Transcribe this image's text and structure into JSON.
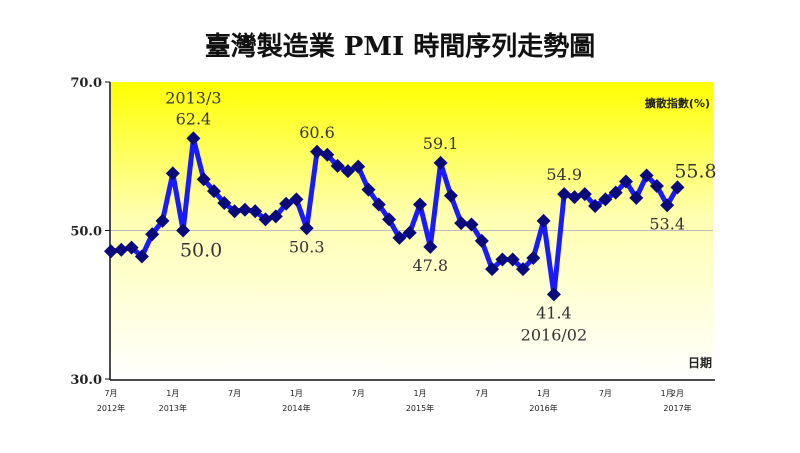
{
  "chart_data": {
    "type": "line",
    "title": "臺灣製造業 PMI 時間序列走勢圖",
    "ylabel": "擴散指數(%)",
    "xlabel": "日期",
    "ylim": [
      30,
      70
    ],
    "yticks": [
      "30.0",
      "50.0",
      "70.0"
    ],
    "reference_line": 50,
    "start": "2012/7",
    "x_ticks": [
      {
        "index": 0,
        "month": "7月",
        "year": "2012年"
      },
      {
        "index": 6,
        "month": "1月",
        "year": "2013年"
      },
      {
        "index": 12,
        "month": "7月",
        "year": ""
      },
      {
        "index": 18,
        "month": "1月",
        "year": "2014年"
      },
      {
        "index": 24,
        "month": "7月",
        "year": ""
      },
      {
        "index": 30,
        "month": "1月",
        "year": "2015年"
      },
      {
        "index": 36,
        "month": "7月",
        "year": ""
      },
      {
        "index": 42,
        "month": "1月",
        "year": "2016年"
      },
      {
        "index": 48,
        "month": "7月",
        "year": ""
      },
      {
        "index": 54,
        "month": "1月",
        "year": ""
      },
      {
        "index": 55,
        "month": "2月",
        "year": "2017年"
      }
    ],
    "values": [
      47.2,
      47.4,
      47.7,
      46.5,
      49.5,
      51.3,
      57.7,
      50.0,
      62.4,
      56.9,
      55.3,
      53.7,
      52.6,
      52.8,
      52.6,
      51.5,
      51.9,
      53.6,
      54.2,
      50.3,
      60.6,
      60.2,
      58.7,
      58.0,
      58.6,
      55.5,
      53.5,
      51.5,
      49.0,
      49.7,
      53.5,
      47.8,
      59.1,
      54.7,
      51.0,
      50.8,
      48.6,
      44.8,
      46.1,
      46.1,
      44.8,
      46.3,
      51.3,
      41.4,
      54.9,
      54.5,
      54.9,
      53.3,
      54.2,
      55.1,
      56.6,
      54.4,
      57.4,
      56.0,
      53.4,
      55.8
    ],
    "annotations": [
      {
        "index": 8,
        "text": "2013/3",
        "pos": "above2"
      },
      {
        "index": 8,
        "text": "62.4",
        "pos": "above"
      },
      {
        "index": 7,
        "text": "50.0",
        "pos": "below-right"
      },
      {
        "index": 20,
        "text": "60.6",
        "pos": "above"
      },
      {
        "index": 19,
        "text": "50.3",
        "pos": "below"
      },
      {
        "index": 32,
        "text": "59.1",
        "pos": "above"
      },
      {
        "index": 31,
        "text": "47.8",
        "pos": "below"
      },
      {
        "index": 43,
        "text": "41.4",
        "pos": "below"
      },
      {
        "index": 43,
        "text": "2016/02",
        "pos": "below2"
      },
      {
        "index": 44,
        "text": "54.9",
        "pos": "above"
      },
      {
        "index": 54,
        "text": "53.4",
        "pos": "below"
      },
      {
        "index": 55,
        "text": "55.8",
        "pos": "above-right"
      }
    ],
    "colors": {
      "line": "#1a1aff",
      "marker": "#0a0a7a",
      "bg_top": "#ffff00",
      "bg_bottom": "#ffffff"
    }
  }
}
